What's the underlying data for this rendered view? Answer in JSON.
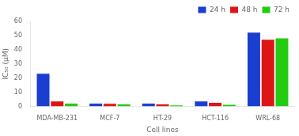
{
  "chart_data": {
    "type": "bar",
    "categories": [
      "MDA-MB-231",
      "MCF-7",
      "HT-29",
      "HCT-116",
      "WRL-68"
    ],
    "series": [
      {
        "name": "24 h",
        "color": "#1a3ecf",
        "values": [
          23,
          2.0,
          2.0,
          3.5,
          52
        ]
      },
      {
        "name": "48 h",
        "color": "#dd1515",
        "values": [
          3.5,
          1.8,
          1.5,
          2.5,
          47
        ]
      },
      {
        "name": "72 h",
        "color": "#22cc11",
        "values": [
          2.0,
          1.5,
          0.8,
          1.2,
          48
        ]
      }
    ],
    "xlabel": "Cell lines",
    "ylabel": "IC₅₀ (μM)",
    "ylim": [
      0,
      60
    ],
    "yticks": [
      0,
      10,
      20,
      30,
      40,
      50,
      60
    ],
    "grid": false,
    "legend": "upper right"
  }
}
